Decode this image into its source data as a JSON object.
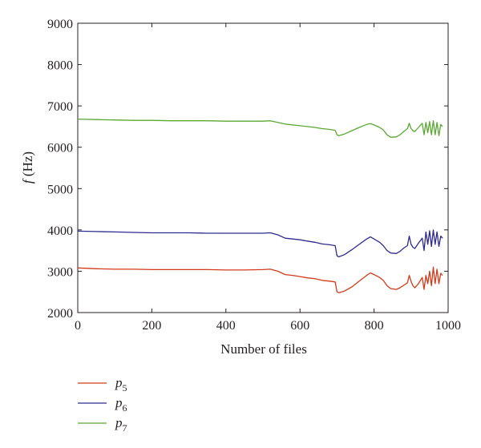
{
  "chart_data": {
    "type": "line",
    "title": "",
    "xlabel": "Number of files",
    "ylabel": "f (Hz)",
    "ylabel_italic": "f",
    "ylabel_rest": " (Hz)",
    "xlim": [
      0,
      1000
    ],
    "ylim": [
      2000,
      9000
    ],
    "x_ticks": [
      0,
      200,
      400,
      600,
      800,
      1000
    ],
    "y_ticks": [
      2000,
      3000,
      4000,
      5000,
      6000,
      7000,
      8000,
      9000
    ],
    "grid": false,
    "legend_position": "below-left",
    "x": [
      0,
      50,
      100,
      150,
      200,
      250,
      300,
      350,
      400,
      450,
      500,
      520,
      540,
      560,
      580,
      600,
      620,
      640,
      660,
      680,
      695,
      700,
      705,
      720,
      740,
      760,
      780,
      790,
      800,
      815,
      825,
      835,
      845,
      860,
      870,
      880,
      890,
      895,
      900,
      905,
      910,
      920,
      930,
      935,
      940,
      945,
      950,
      955,
      960,
      965,
      970,
      975,
      980,
      985
    ],
    "series": [
      {
        "name": "p5",
        "label_base": "p",
        "label_sub": "5",
        "color": "#d33a1a",
        "values": [
          3080,
          3060,
          3050,
          3050,
          3040,
          3040,
          3040,
          3040,
          3030,
          3030,
          3040,
          3050,
          3000,
          2920,
          2900,
          2870,
          2840,
          2820,
          2780,
          2760,
          2740,
          2500,
          2480,
          2520,
          2620,
          2760,
          2900,
          2960,
          2920,
          2850,
          2780,
          2650,
          2580,
          2560,
          2600,
          2660,
          2720,
          2900,
          2750,
          2650,
          2600,
          2700,
          2850,
          2560,
          2900,
          2700,
          3000,
          2650,
          3100,
          2700,
          3050,
          2700,
          2950,
          2900
        ]
      },
      {
        "name": "p6",
        "label_base": "p",
        "label_sub": "6",
        "color": "#2e2a8f",
        "values": [
          3970,
          3960,
          3950,
          3940,
          3930,
          3930,
          3930,
          3920,
          3920,
          3920,
          3920,
          3930,
          3880,
          3800,
          3780,
          3760,
          3730,
          3700,
          3660,
          3640,
          3620,
          3370,
          3350,
          3400,
          3520,
          3650,
          3780,
          3830,
          3780,
          3700,
          3620,
          3500,
          3440,
          3430,
          3480,
          3560,
          3620,
          3850,
          3650,
          3580,
          3550,
          3680,
          3800,
          3500,
          3950,
          3650,
          3980,
          3600,
          4000,
          3650,
          3950,
          3600,
          3850,
          3800
        ]
      },
      {
        "name": "p7",
        "label_base": "p",
        "label_sub": "7",
        "color": "#5aa832",
        "values": [
          6680,
          6670,
          6660,
          6650,
          6650,
          6640,
          6640,
          6640,
          6630,
          6630,
          6630,
          6640,
          6600,
          6560,
          6540,
          6520,
          6500,
          6480,
          6450,
          6430,
          6410,
          6300,
          6280,
          6320,
          6400,
          6480,
          6550,
          6570,
          6540,
          6480,
          6420,
          6300,
          6240,
          6250,
          6300,
          6380,
          6450,
          6580,
          6450,
          6400,
          6380,
          6480,
          6580,
          6300,
          6600,
          6350,
          6620,
          6300,
          6640,
          6300,
          6600,
          6280,
          6550,
          6500
        ]
      }
    ]
  }
}
